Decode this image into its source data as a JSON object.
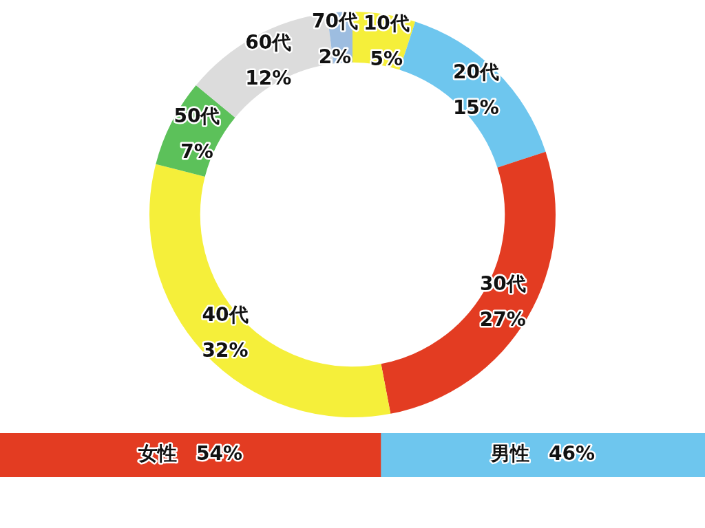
{
  "chart_data": [
    {
      "type": "donut",
      "categories": [
        "10代",
        "20代",
        "30代",
        "40代",
        "50代",
        "60代",
        "70代"
      ],
      "values": [
        5,
        15,
        27,
        32,
        7,
        12,
        2
      ],
      "value_labels": [
        "5%",
        "15%",
        "27%",
        "32%",
        "7%",
        "12%",
        "2%"
      ],
      "colors": [
        "#f5ef3a",
        "#6ec6ee",
        "#e33c22",
        "#f5ef3a",
        "#5cc15a",
        "#dcdcdc",
        "#9dbde0"
      ],
      "legend": false
    },
    {
      "type": "bar",
      "orientation": "horizontal",
      "stacked": true,
      "categories": [
        null
      ],
      "legend": false,
      "series": [
        {
          "name": "女性",
          "color": "#e33c22",
          "values": [
            54
          ],
          "value_labels": [
            "54%"
          ]
        },
        {
          "name": "男性",
          "color": "#6ec6ee",
          "values": [
            46
          ],
          "value_labels": [
            "46%"
          ]
        }
      ]
    }
  ]
}
